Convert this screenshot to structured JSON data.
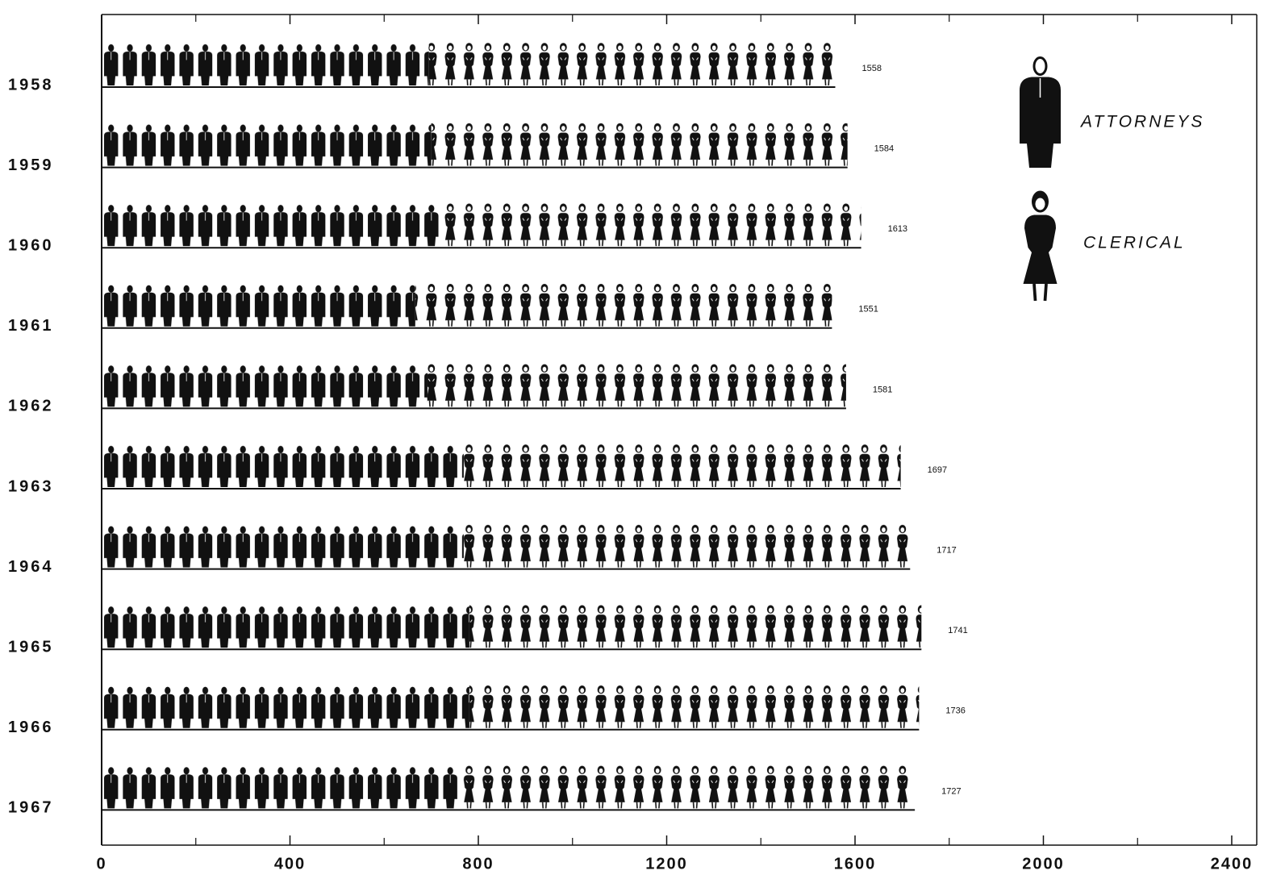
{
  "chart_data": {
    "type": "pictogram",
    "categories": [
      "1958",
      "1959",
      "1960",
      "1961",
      "1962",
      "1963",
      "1964",
      "1965",
      "1966",
      "1967"
    ],
    "series": [
      {
        "name": "ATTORNEYS",
        "color": "#111111",
        "values": [
          695,
          700,
          723,
          666,
          692,
          769,
          769,
          781,
          781,
          757
        ]
      },
      {
        "name": "CLERICAL",
        "color": "#111111",
        "values": [
          863,
          884,
          890,
          885,
          889,
          928,
          948,
          960,
          955,
          970
        ]
      }
    ],
    "totals": [
      1558,
      1584,
      1613,
      1551,
      1581,
      1697,
      1717,
      1741,
      1736,
      1727
    ],
    "xlim": [
      0,
      2400
    ],
    "xticks": [
      0,
      400,
      800,
      1200,
      1600,
      2000,
      2400
    ],
    "xminor_ticks": [
      200,
      600,
      1000,
      1400,
      1800,
      2200
    ],
    "legend": "upper right"
  }
}
